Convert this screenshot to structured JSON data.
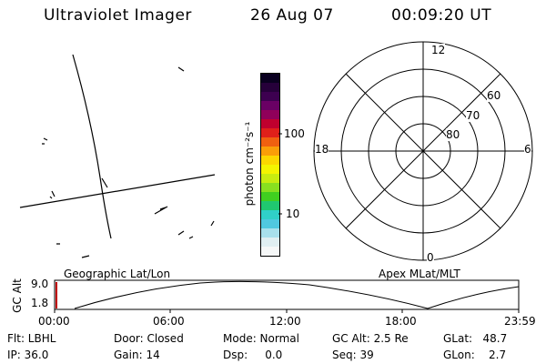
{
  "header": {
    "title": "Ultraviolet Imager",
    "date": "26 Aug 07",
    "time": "00:09:20 UT"
  },
  "colorbar": {
    "unit_label": "photon cm⁻²s⁻¹",
    "tick_high": "100",
    "tick_low": "10",
    "colors": [
      "#0a0020",
      "#26003a",
      "#3d0050",
      "#6a0064",
      "#90005a",
      "#c0002e",
      "#e0201a",
      "#f06010",
      "#fa9e08",
      "#fcd700",
      "#f4f400",
      "#c8ec10",
      "#88e020",
      "#40d020",
      "#20c870",
      "#30d0c8",
      "#50c8e0",
      "#a8e0ec",
      "#e0eff2",
      "#f6f8f8"
    ]
  },
  "polar": {
    "mlt_top": "12",
    "mlt_left": "18",
    "mlt_right": "6",
    "mlt_bottom": "0",
    "lat_60": "60",
    "lat_70": "70",
    "lat_80": "80"
  },
  "timeline": {
    "ylabel": "GC Alt",
    "y_high": "9.0",
    "y_low": "1.8",
    "left_caption": "Geographic Lat/Lon",
    "right_caption": "Apex  MLat/MLT",
    "times": [
      "00:00",
      "06:00",
      "12:00",
      "18:00",
      "23:59"
    ]
  },
  "status": {
    "flt": "Flt: LBHL",
    "ip": "IP: 36.0",
    "door": "Door: Closed",
    "gain": "Gain: 14",
    "mode": "Mode: Normal",
    "dsp": "Dsp:     0.0",
    "gcalt": "GC Alt: 2.5 Re",
    "seq": "Seq: 39",
    "glat": "GLat:   48.7",
    "glon": "GLon:    2.7"
  }
}
